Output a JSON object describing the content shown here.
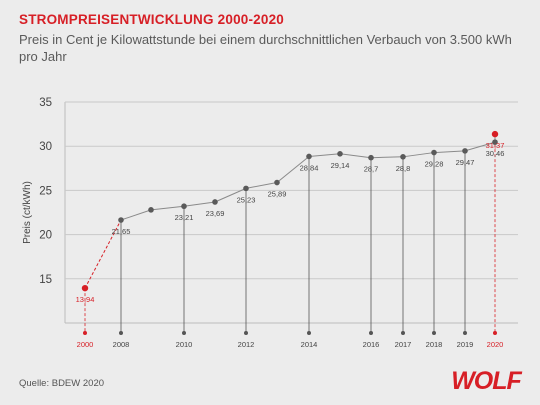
{
  "title": "STROMPREISENTWICKLUNG 2000-2020",
  "subtitle": "Preis in Cent je Kilowattstunde bei einem durchschnittlichen Verbauch von 3.500 kWh pro Jahr",
  "source": "Quelle: BDEW 2020",
  "logo_text": "WOLF",
  "colors": {
    "accent": "#d71f26",
    "line": "#8a8a8a",
    "point": "#5a5a5a",
    "grid": "#c9c9c9"
  },
  "chart_data": {
    "type": "line",
    "xlabel": "",
    "ylabel": "Preis (ct/kWh)",
    "ylim": [
      10,
      35
    ],
    "yticks": [
      15,
      20,
      25,
      30,
      35
    ],
    "grid": true,
    "x_ticks_labeled": [
      2000,
      2008,
      2010,
      2012,
      2014,
      2016,
      2017,
      2018,
      2019,
      2020
    ],
    "highlight_years": [
      2000,
      2020
    ],
    "series": [
      {
        "name": "",
        "points": [
          {
            "x": 2000,
            "y": 13.94,
            "label": "13,94"
          },
          {
            "x": 2008,
            "y": 21.65,
            "label": "21,65"
          },
          {
            "x": 2009,
            "y": 22.8,
            "label": ""
          },
          {
            "x": 2010,
            "y": 23.21,
            "label": "23,21"
          },
          {
            "x": 2011,
            "y": 23.69,
            "label": "23,69"
          },
          {
            "x": 2012,
            "y": 25.23,
            "label": "25,23"
          },
          {
            "x": 2013,
            "y": 25.89,
            "label": "25,89"
          },
          {
            "x": 2014,
            "y": 28.84,
            "label": "28,84"
          },
          {
            "x": 2015,
            "y": 29.14,
            "label": "29,14"
          },
          {
            "x": 2016,
            "y": 28.7,
            "label": "28,7"
          },
          {
            "x": 2017,
            "y": 28.8,
            "label": "28,8"
          },
          {
            "x": 2018,
            "y": 29.28,
            "label": "29,28"
          },
          {
            "x": 2019,
            "y": 29.47,
            "label": "29,47"
          },
          {
            "x": 2020,
            "y": 30.46,
            "label": "30,46"
          },
          {
            "x": 2021,
            "y": 31.37,
            "label": "31,37"
          }
        ]
      }
    ]
  }
}
